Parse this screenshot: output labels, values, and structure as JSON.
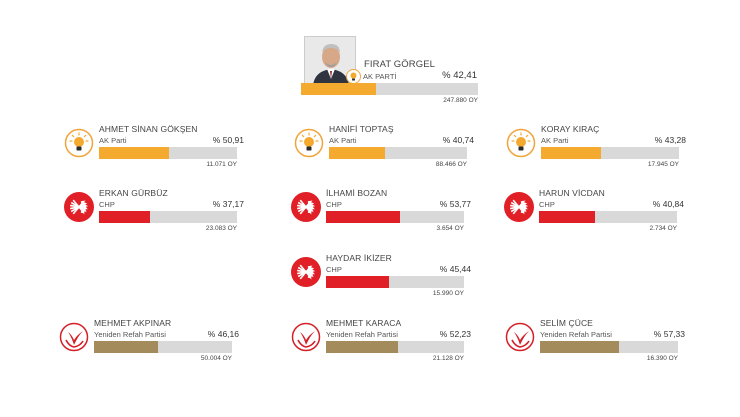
{
  "colors": {
    "ak": "#f4a92f",
    "chp": "#e01f26",
    "yrp": "#a48b5c",
    "track": "#d9d9d9"
  },
  "headline": {
    "name": "FIRAT GÖRGEL",
    "party": "AK PARTİ",
    "pct": "% 42,41",
    "votes": "247.880 OY",
    "share": 42.41,
    "logo": "akparti-bulb-icon"
  },
  "candidates": [
    {
      "name": "AHMET SİNAN GÖKŞEN",
      "party": "AK Parti",
      "pct": "% 50,91",
      "votes": "11.071 OY",
      "share": 50.91,
      "logo": "akparti-bulb-icon",
      "type": "ak"
    },
    {
      "name": "HANİFİ TOPTAŞ",
      "party": "AK Parti",
      "pct": "% 40,74",
      "votes": "88.466 OY",
      "share": 40.74,
      "logo": "akparti-bulb-icon",
      "type": "ak"
    },
    {
      "name": "KORAY KIRAÇ",
      "party": "AK Parti",
      "pct": "% 43,28",
      "votes": "17.945 OY",
      "share": 43.28,
      "logo": "akparti-bulb-icon",
      "type": "ak"
    },
    {
      "name": "ERKAN GÜRBÜZ",
      "party": "CHP",
      "pct": "% 37,17",
      "votes": "23.083 OY",
      "share": 37.17,
      "logo": "chp-six-arrows-icon",
      "type": "chp"
    },
    {
      "name": "İLHAMİ BOZAN",
      "party": "CHP",
      "pct": "% 53,77",
      "votes": "3.654 OY",
      "share": 53.77,
      "logo": "chp-six-arrows-icon",
      "type": "chp"
    },
    {
      "name": "HARUN VİCDAN",
      "party": "CHP",
      "pct": "% 40,84",
      "votes": "2.734 OY",
      "share": 40.84,
      "logo": "chp-six-arrows-icon",
      "type": "chp"
    },
    {
      "name": "HAYDAR İKİZER",
      "party": "CHP",
      "pct": "% 45,44",
      "votes": "15.990 OY",
      "share": 45.44,
      "logo": "chp-six-arrows-icon",
      "type": "chp"
    },
    {
      "name": "MEHMET AKPINAR",
      "party": "Yeniden Refah Partisi",
      "pct": "% 46,16",
      "votes": "50.004 OY",
      "share": 46.16,
      "logo": "yeniden-refah-logo-icon",
      "type": "yrp"
    },
    {
      "name": "MEHMET KARACA",
      "party": "Yeniden Refah Partisi",
      "pct": "% 52,23",
      "votes": "21.128 OY",
      "share": 52.23,
      "logo": "yeniden-refah-logo-icon",
      "type": "yrp"
    },
    {
      "name": "SELİM ÇÜCE",
      "party": "Yeniden Refah Partisi",
      "pct": "% 57,33",
      "votes": "16.390 OY",
      "share": 57.33,
      "logo": "yeniden-refah-logo-icon",
      "type": "yrp"
    }
  ]
}
